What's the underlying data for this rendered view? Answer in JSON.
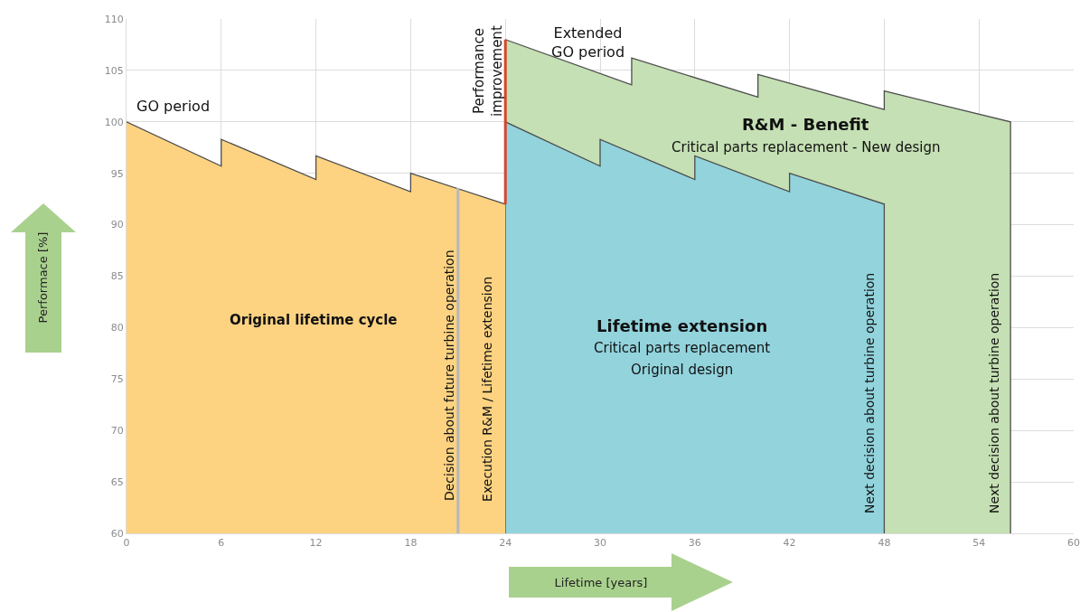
{
  "chart_data": {
    "type": "area",
    "xlabel": "Lifetime [years]",
    "ylabel": "Performace [%]",
    "xlim": [
      0,
      60
    ],
    "ylim": [
      60,
      110
    ],
    "xticks": [
      0,
      6,
      12,
      18,
      24,
      30,
      36,
      42,
      48,
      54,
      60
    ],
    "yticks": [
      60,
      65,
      70,
      75,
      80,
      85,
      90,
      95,
      100,
      105,
      110
    ],
    "grid": true,
    "series": [
      {
        "color": "#c5e0b4",
        "x": [
          24,
          32,
          32,
          40,
          40,
          48,
          48,
          56,
          56
        ],
        "values": [
          108,
          103.6,
          106.2,
          102.4,
          104.6,
          101.2,
          103,
          100,
          60
        ]
      },
      {
        "color": "#92d3dc",
        "x": [
          24,
          24,
          30,
          30,
          36,
          36,
          42,
          42,
          48,
          48
        ],
        "values": [
          60,
          100,
          95.7,
          98.3,
          94.4,
          96.7,
          93.2,
          95,
          92,
          60
        ]
      },
      {
        "color": "#fdd382",
        "x": [
          0,
          6,
          6,
          12,
          12,
          18,
          18,
          24
        ],
        "values": [
          100,
          95.7,
          98.3,
          94.4,
          96.7,
          93.2,
          95,
          92
        ]
      },
      {
        "type": "line",
        "color": "#b8b8b8",
        "x": [
          21,
          21
        ],
        "values": [
          60,
          93.6
        ]
      },
      {
        "type": "line",
        "color": "#d9442a",
        "x": [
          24,
          24
        ],
        "values": [
          92,
          108
        ]
      }
    ],
    "annotations": [
      "GO period",
      "Extended GO period",
      "Performance improvement",
      "R&M - Benefit",
      "Critical parts replacement - New design",
      "Original lifetime cycle",
      "Lifetime extension",
      "Critical parts replacement",
      "Original design",
      "Decision about future turbine operation",
      "Execution R&M / Lifetime extension",
      "Next decision about turbine operation",
      "Next decision about turbine operation"
    ]
  }
}
